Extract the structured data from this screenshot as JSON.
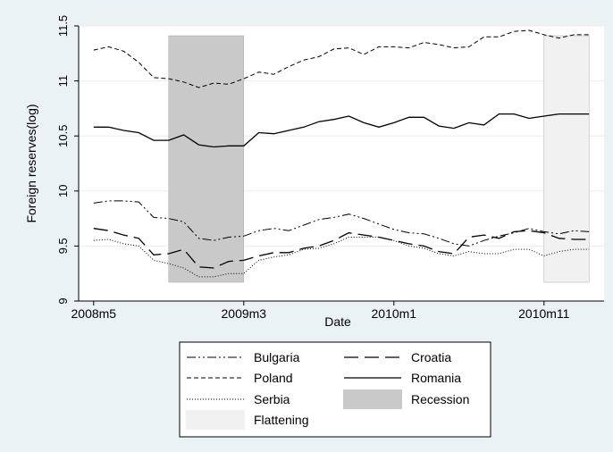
{
  "chart_data": {
    "type": "line",
    "xlabel": "Date",
    "ylabel": "Foreign reserves(log)",
    "x_start": "2008m5",
    "x_ticks": [
      "2008m5",
      "2009m3",
      "2010m1",
      "2010m11"
    ],
    "y_ticks": [
      "9",
      "9.5",
      "10",
      "10.5",
      "11",
      "11.5"
    ],
    "ylim": [
      9,
      11.5
    ],
    "grid": true,
    "legend_position": "bottom",
    "shaded_regions": [
      {
        "name": "Recession",
        "start": "2008m10",
        "end": "2009m3",
        "color": "#c9c9c9"
      },
      {
        "name": "Flattening",
        "start": "2010m11",
        "end": "2011m2",
        "color": "#f1f1f1"
      }
    ],
    "series": [
      {
        "name": "Bulgaria",
        "dash": "10,3,2,3,2,3",
        "color": "#000000",
        "stroke_width": 1,
        "values": [
          9.89,
          9.91,
          9.91,
          9.9,
          9.76,
          9.75,
          9.72,
          9.57,
          9.55,
          9.58,
          9.59,
          9.64,
          9.66,
          9.64,
          9.69,
          9.74,
          9.76,
          9.79,
          9.75,
          9.7,
          9.65,
          9.62,
          9.61,
          9.57,
          9.52,
          9.5,
          9.55,
          9.59,
          9.62,
          9.66,
          9.63,
          9.61,
          9.64,
          9.63
        ]
      },
      {
        "name": "Croatia",
        "dash": "16,7",
        "color": "#000000",
        "stroke_width": 1.3,
        "values": [
          9.66,
          9.64,
          9.6,
          9.57,
          9.42,
          9.43,
          9.47,
          9.31,
          9.3,
          9.36,
          9.37,
          9.41,
          9.44,
          9.44,
          9.48,
          9.5,
          9.55,
          9.62,
          9.6,
          9.58,
          9.55,
          9.52,
          9.5,
          9.45,
          9.43,
          9.58,
          9.6,
          9.57,
          9.63,
          9.64,
          9.62,
          9.57,
          9.56,
          9.56
        ]
      },
      {
        "name": "Poland",
        "dash": "5,3",
        "color": "#000000",
        "stroke_width": 1,
        "values": [
          11.28,
          11.31,
          11.27,
          11.17,
          11.03,
          11.02,
          10.99,
          10.94,
          10.98,
          10.97,
          11.02,
          11.08,
          11.06,
          11.13,
          11.19,
          11.22,
          11.29,
          11.3,
          11.24,
          11.31,
          11.31,
          11.3,
          11.35,
          11.33,
          11.3,
          11.31,
          11.4,
          11.4,
          11.45,
          11.46,
          11.42,
          11.39,
          11.42,
          11.42
        ]
      },
      {
        "name": "Romania",
        "dash": "",
        "color": "#000000",
        "stroke_width": 1.3,
        "values": [
          10.58,
          10.58,
          10.55,
          10.53,
          10.46,
          10.46,
          10.51,
          10.42,
          10.4,
          10.41,
          10.41,
          10.53,
          10.52,
          10.55,
          10.58,
          10.63,
          10.65,
          10.68,
          10.62,
          10.58,
          10.62,
          10.67,
          10.67,
          10.59,
          10.57,
          10.62,
          10.6,
          10.7,
          10.7,
          10.66,
          10.68,
          10.7,
          10.7,
          10.7
        ]
      },
      {
        "name": "Serbia",
        "dash": "1,2",
        "color": "#000000",
        "stroke_width": 1,
        "values": [
          9.55,
          9.56,
          9.52,
          9.5,
          9.37,
          9.34,
          9.3,
          9.22,
          9.22,
          9.25,
          9.25,
          9.37,
          9.4,
          9.42,
          9.47,
          9.48,
          9.52,
          9.58,
          9.58,
          9.58,
          9.55,
          9.5,
          9.48,
          9.43,
          9.41,
          9.45,
          9.43,
          9.43,
          9.47,
          9.47,
          9.41,
          9.45,
          9.47,
          9.47
        ]
      }
    ],
    "legend": [
      {
        "label": "Bulgaria",
        "kind": "line",
        "series": 0
      },
      {
        "label": "Croatia",
        "kind": "line",
        "series": 1
      },
      {
        "label": "Poland",
        "kind": "line",
        "series": 2
      },
      {
        "label": "Romania",
        "kind": "line",
        "series": 3
      },
      {
        "label": "Serbia",
        "kind": "line",
        "series": 4
      },
      {
        "label": "Recession",
        "kind": "area",
        "region": 0
      },
      {
        "label": "Flattening",
        "kind": "area",
        "region": 1
      }
    ]
  }
}
